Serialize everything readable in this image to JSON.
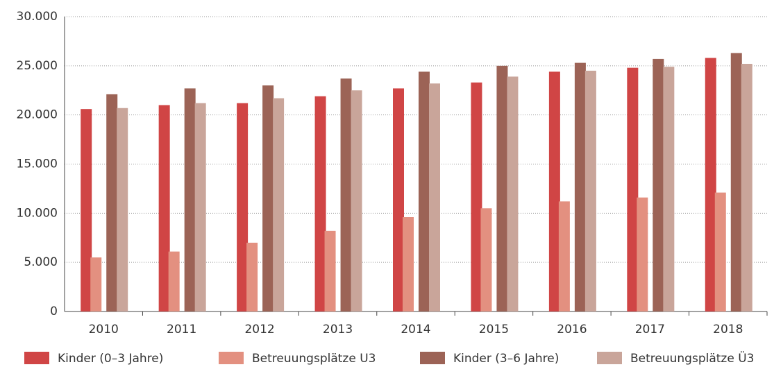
{
  "chart_data": {
    "type": "bar",
    "categories": [
      "2010",
      "2011",
      "2012",
      "2013",
      "2014",
      "2015",
      "2016",
      "2017",
      "2018"
    ],
    "series": [
      {
        "name": "Kinder (0–3 Jahre)",
        "color": "#d04545",
        "values": [
          20600,
          21000,
          21200,
          21900,
          22700,
          23300,
          24400,
          24800,
          25800
        ]
      },
      {
        "name": "Betreuungsplätze U3",
        "color": "#e39080",
        "values": [
          5500,
          6100,
          7000,
          8200,
          9600,
          10500,
          11200,
          11600,
          12100
        ]
      },
      {
        "name": "Kinder (3–6 Jahre)",
        "color": "#9c6356",
        "values": [
          22100,
          22700,
          23000,
          23700,
          24400,
          25000,
          25300,
          25700,
          26300
        ]
      },
      {
        "name": "Betreuungsplätze Ü3",
        "color": "#c9a59a",
        "values": [
          20700,
          21200,
          21700,
          22500,
          23200,
          23900,
          24500,
          24900,
          25200
        ]
      }
    ],
    "ylim": [
      0,
      30000
    ],
    "yticks": [
      0,
      {
        "value": 5000,
        "label": "5.000"
      },
      {
        "value": 10000,
        "label": "10.000"
      },
      {
        "value": 15000,
        "label": "15.000"
      },
      {
        "value": 20000,
        "label": "20.000"
      },
      {
        "value": 25000,
        "label": "25.000"
      },
      {
        "value": 30000,
        "label": "30.000"
      }
    ],
    "grid": true,
    "legend": "bottom"
  }
}
